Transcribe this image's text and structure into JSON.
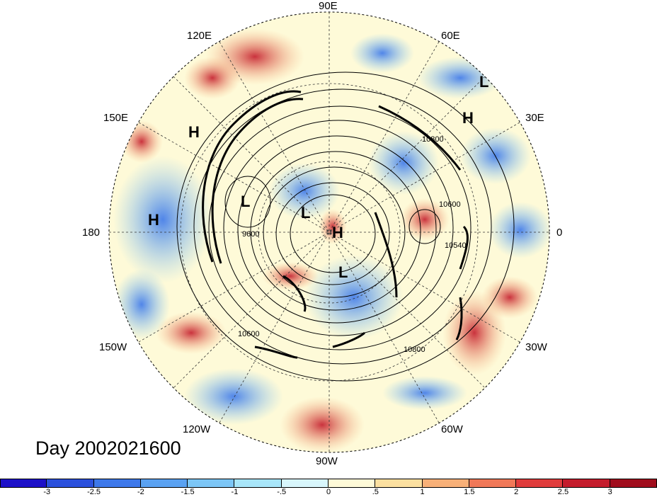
{
  "title": "Day 2002021600",
  "longitude_labels": {
    "lon_90e": "90E",
    "lon_120e": "120E",
    "lon_60e": "60E",
    "lon_150e": "150E",
    "lon_30e": "30E",
    "lon_180": "180",
    "lon_0": "0",
    "lon_150w": "150W",
    "lon_30w": "30W",
    "lon_120w": "120W",
    "lon_60w": "60W",
    "lon_90w": "90W"
  },
  "pressure_centers": [
    {
      "label": "H"
    },
    {
      "label": "H"
    },
    {
      "label": "H"
    },
    {
      "label": "H"
    },
    {
      "label": "L"
    },
    {
      "label": "L"
    },
    {
      "label": "L"
    },
    {
      "label": "L"
    }
  ],
  "contour_labels": {
    "c_9600": "9600",
    "c_10600": "10600",
    "c_10800": "10800",
    "c_10540": "10540",
    "c_10600b": "10600",
    "c_10800b": "10800"
  },
  "colorbar": {
    "ticks": [
      "-3",
      "-2.5",
      "-2",
      "-1.5",
      "-1",
      "-.5",
      "0",
      ".5",
      "1",
      "1.5",
      "2",
      "2.5",
      "3"
    ],
    "colors": [
      "#1c10c8",
      "#2a50dc",
      "#3d78ea",
      "#5aa2f2",
      "#7cc6f6",
      "#a8e6fa",
      "#d8f6fc",
      "#fefad8",
      "#fce0a0",
      "#f8b078",
      "#f07858",
      "#e03c3c",
      "#c41c2c",
      "#a00c1c"
    ]
  }
}
